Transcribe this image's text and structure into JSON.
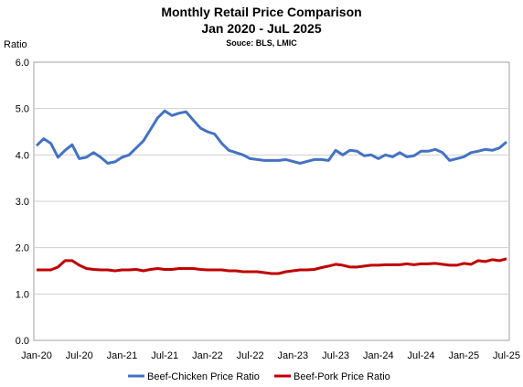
{
  "chart_data": {
    "type": "line",
    "title": "Monthly Retail Price Comparison",
    "subtitle": "Jan 2020 - JuL 2025",
    "source": "Souce: BLS, LMIC",
    "ylabel": "Ratio",
    "ylim": [
      0,
      6
    ],
    "yticks": [
      "0.0",
      "1.0",
      "2.0",
      "3.0",
      "4.0",
      "5.0",
      "6.0"
    ],
    "xticks": [
      "Jan-20",
      "Jul-20",
      "Jan-21",
      "Jul-21",
      "Jan-22",
      "Jul-22",
      "Jan-23",
      "Jul-23",
      "Jan-24",
      "Jul-24",
      "Jan-25",
      "Jul-25"
    ],
    "grid": true,
    "legend_position": "bottom",
    "series": [
      {
        "name": "Beef-Chicken Price Ratio",
        "color": "#4472C4",
        "values": [
          4.2,
          4.35,
          4.25,
          3.95,
          4.1,
          4.22,
          3.92,
          3.95,
          4.05,
          3.95,
          3.82,
          3.85,
          3.95,
          4.0,
          4.15,
          4.3,
          4.55,
          4.8,
          4.95,
          4.85,
          4.9,
          4.93,
          4.75,
          4.58,
          4.5,
          4.45,
          4.25,
          4.1,
          4.05,
          4.0,
          3.92,
          3.9,
          3.88,
          3.88,
          3.88,
          3.9,
          3.86,
          3.82,
          3.86,
          3.9,
          3.9,
          3.88,
          4.1,
          4.0,
          4.1,
          4.08,
          3.98,
          4.0,
          3.92,
          4.0,
          3.96,
          4.05,
          3.96,
          3.98,
          4.08,
          4.08,
          4.12,
          4.05,
          3.88,
          3.92,
          3.96,
          4.05,
          4.08,
          4.12,
          4.1,
          4.15,
          4.28
        ]
      },
      {
        "name": "Beef-Pork Price Ratio",
        "color": "#C00000",
        "values": [
          1.52,
          1.52,
          1.52,
          1.58,
          1.72,
          1.72,
          1.62,
          1.55,
          1.53,
          1.52,
          1.52,
          1.5,
          1.52,
          1.52,
          1.53,
          1.5,
          1.53,
          1.55,
          1.53,
          1.53,
          1.55,
          1.55,
          1.55,
          1.53,
          1.52,
          1.52,
          1.52,
          1.5,
          1.5,
          1.48,
          1.48,
          1.48,
          1.46,
          1.44,
          1.44,
          1.48,
          1.5,
          1.52,
          1.52,
          1.53,
          1.57,
          1.6,
          1.64,
          1.62,
          1.58,
          1.58,
          1.6,
          1.62,
          1.62,
          1.63,
          1.63,
          1.63,
          1.65,
          1.63,
          1.65,
          1.65,
          1.66,
          1.64,
          1.62,
          1.62,
          1.66,
          1.64,
          1.72,
          1.7,
          1.74,
          1.72,
          1.76
        ]
      }
    ]
  }
}
